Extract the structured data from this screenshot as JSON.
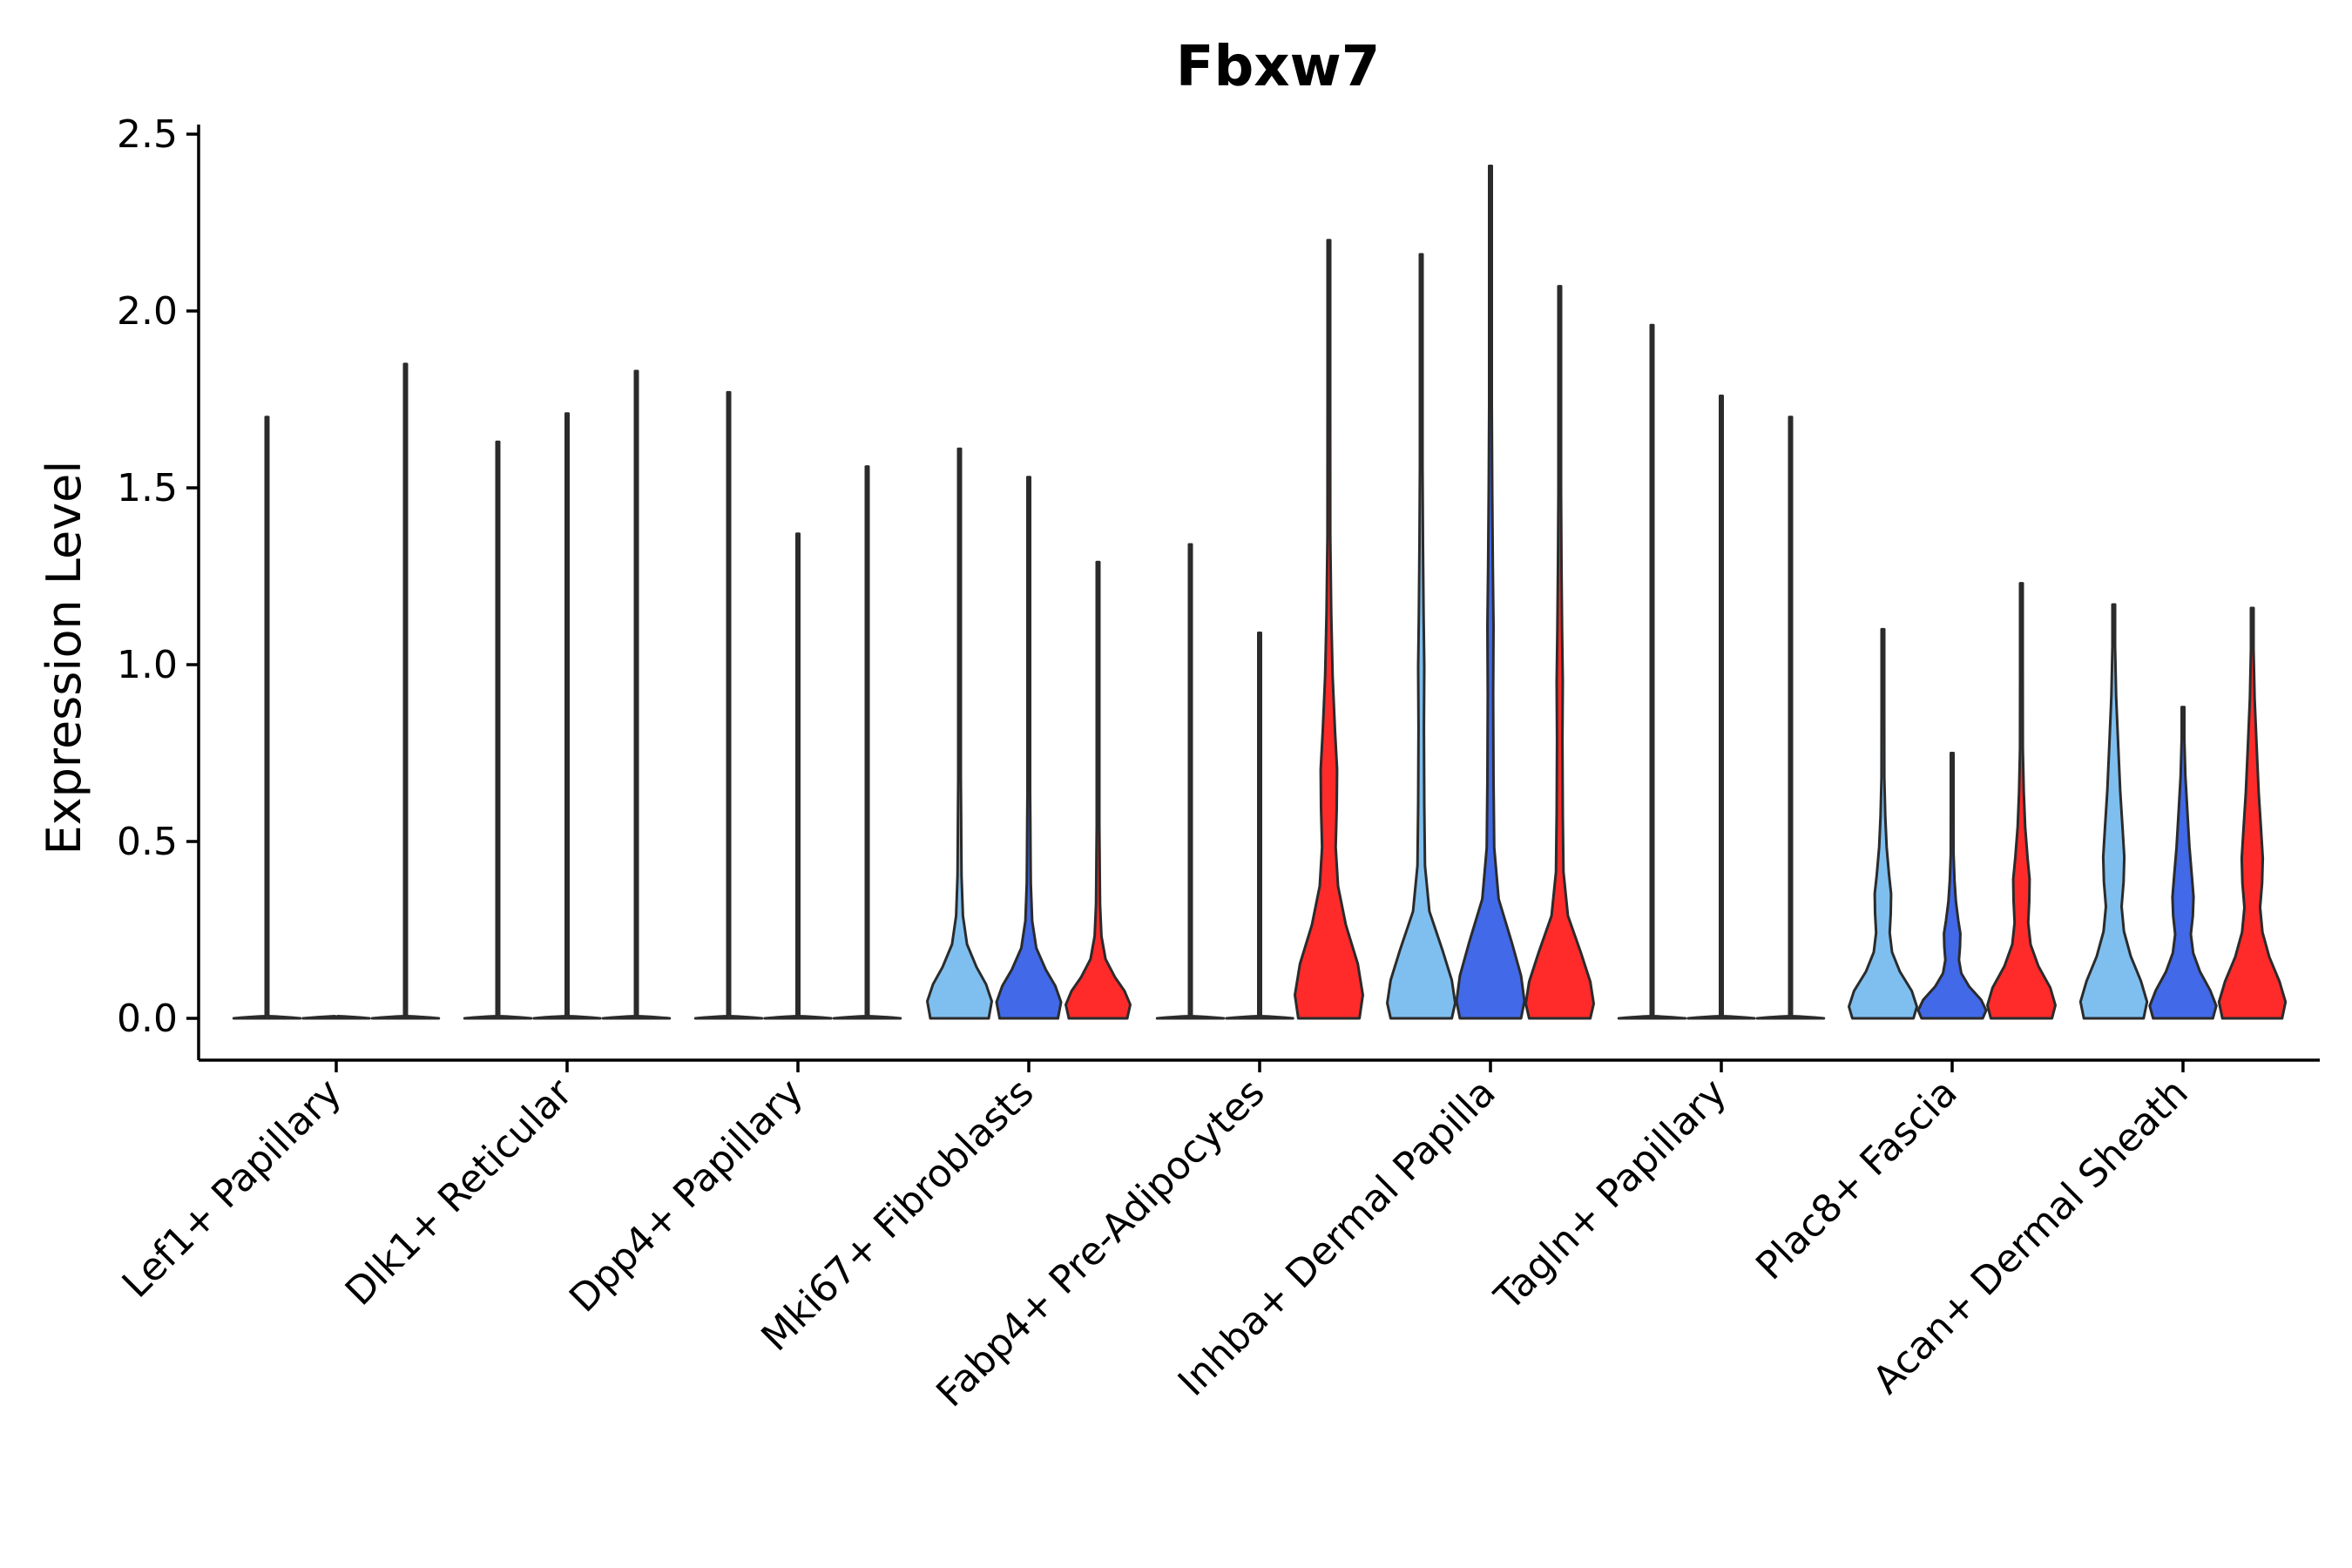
{
  "chart_data": {
    "type": "violin",
    "title": "Fbxw7",
    "ylabel": "Expression Level",
    "xlabel": "",
    "ylim": [
      -0.12,
      2.52
    ],
    "yticks": [
      "0.0",
      "0.5",
      "1.0",
      "1.5",
      "2.0",
      "2.5"
    ],
    "ytick_values": [
      0,
      0.5,
      1.0,
      1.5,
      2.0,
      2.5
    ],
    "legend": "none",
    "grid": false,
    "group_colors": [
      "#7fbfef",
      "#4169e8",
      "#ff2a2a"
    ],
    "categories": [
      "Lef1+ Papillary",
      "Dlk1+ Reticular",
      "Dpp4+ Papillary",
      "Mki67+ Fibroblasts",
      "Fabp4+ Pre-Adipocytes",
      "Inhba+ Dermal Papilla",
      "Tagln+ Papillary",
      "Plac8+ Fascia",
      "Acan+ Dermal Sheath"
    ],
    "violins": [
      [
        {
          "max": 1.7,
          "shape": "flat"
        },
        {
          "max": 0.0,
          "shape": "flat"
        },
        {
          "max": 1.85,
          "shape": "flat"
        }
      ],
      [
        {
          "max": 1.63,
          "shape": "flat"
        },
        {
          "max": 1.71,
          "shape": "flat"
        },
        {
          "max": 1.83,
          "shape": "flat"
        }
      ],
      [
        {
          "max": 1.77,
          "shape": "flat"
        },
        {
          "max": 1.37,
          "shape": "flat"
        },
        {
          "max": 1.56,
          "shape": "flat"
        }
      ],
      [
        {
          "max": 1.61,
          "shape": "low"
        },
        {
          "max": 1.53,
          "shape": "low"
        },
        {
          "max": 1.29,
          "shape": "low"
        }
      ],
      [
        {
          "max": 1.34,
          "shape": "flat"
        },
        {
          "max": 1.09,
          "shape": "flat"
        },
        {
          "max": 2.2,
          "shape": "mid"
        }
      ],
      [
        {
          "max": 2.16,
          "shape": "high"
        },
        {
          "max": 2.41,
          "shape": "high"
        },
        {
          "max": 2.07,
          "shape": "high"
        }
      ],
      [
        {
          "max": 1.96,
          "shape": "flat"
        },
        {
          "max": 1.76,
          "shape": "flat"
        },
        {
          "max": 1.7,
          "shape": "flat"
        }
      ],
      [
        {
          "max": 1.1,
          "shape": "mid"
        },
        {
          "max": 0.75,
          "shape": "mid"
        },
        {
          "max": 1.23,
          "shape": "mid"
        }
      ],
      [
        {
          "max": 1.17,
          "shape": "wide"
        },
        {
          "max": 0.88,
          "shape": "wide"
        },
        {
          "max": 1.16,
          "shape": "wide"
        }
      ]
    ]
  }
}
